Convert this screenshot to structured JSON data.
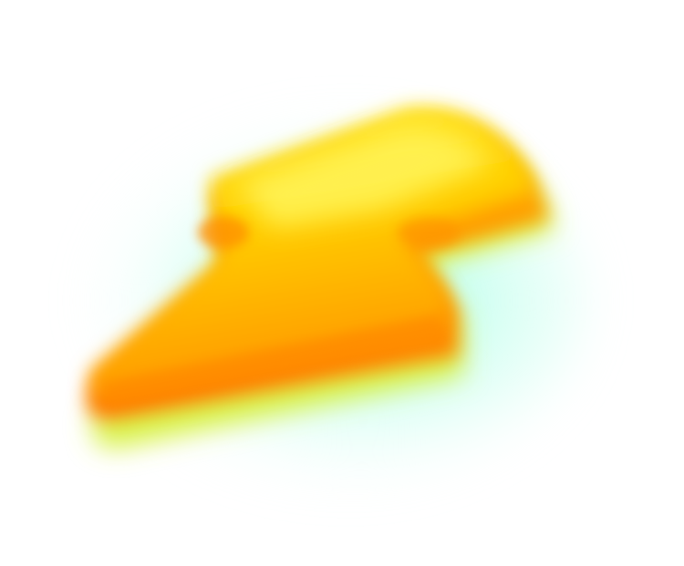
{
  "icon": {
    "name": "lightning-bolt-icon",
    "colors": {
      "top": "#FFEE33",
      "mid": "#FFC800",
      "bottom": "#FF8A00",
      "rim": "#D8F04A",
      "glow": "#8CFFDC"
    }
  }
}
